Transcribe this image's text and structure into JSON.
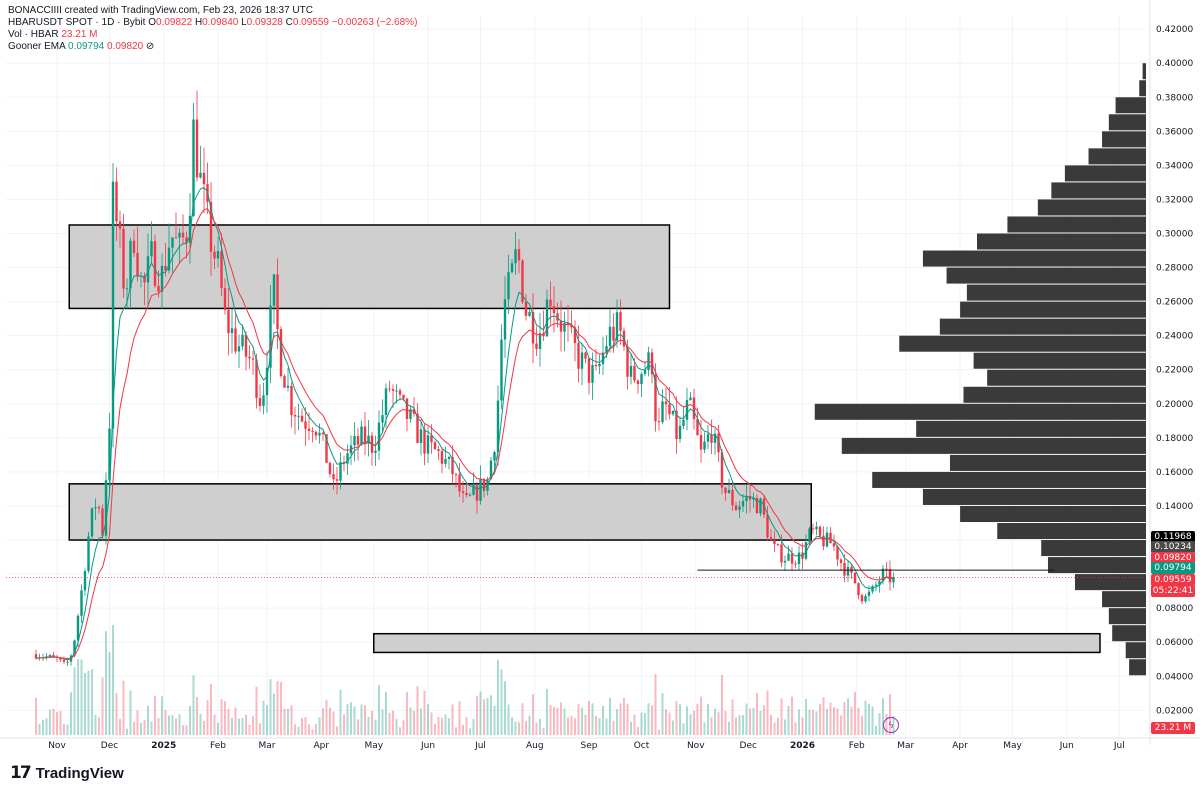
{
  "header": {
    "credit": "BONACCIIII created with TradingView.com, Feb 23, 2026 18:37 UTC",
    "symbol": "HBARUSDT SPOT · 1D · Bybit",
    "ohlc": {
      "o_label": "O",
      "o": "0.09822",
      "h_label": "H",
      "h": "0.09840",
      "l_label": "L",
      "l": "0.09328",
      "c_label": "C",
      "c": "0.09559",
      "change": "−0.00263 (−2.68%)"
    },
    "volume": {
      "label": "Vol · HBAR",
      "value": "23.21 M"
    },
    "ema": {
      "label": "Gooner EMA",
      "v1": "0.09794",
      "v2": "0.09820",
      "icon": "hidden-eye-icon"
    }
  },
  "price_tags": {
    "t1": {
      "value": "0.11968",
      "color": "#000000"
    },
    "t2": {
      "value": "0.10234",
      "color": "#4a4a4a"
    },
    "t3": {
      "value": "0.09820",
      "color": "#f23645"
    },
    "t4": {
      "value": "0.09794",
      "color": "#089981"
    },
    "t5": {
      "value": "0.09559",
      "color": "#f23645"
    },
    "countdown": "05:22:41",
    "volume_tag": "23.21 M"
  },
  "branding": {
    "name": "TradingView"
  },
  "chart_data": {
    "type": "candlestick",
    "y_axis": {
      "range": [
        0.0,
        0.42
      ],
      "ticks": [
        "0.42000",
        "0.40000",
        "0.38000",
        "0.36000",
        "0.34000",
        "0.32000",
        "0.30000",
        "0.28000",
        "0.26000",
        "0.24000",
        "0.22000",
        "0.20000",
        "0.18000",
        "0.16000",
        "0.14000",
        "0.12000",
        "0.10000",
        "0.08000",
        "0.06000",
        "0.04000",
        "0.02000"
      ]
    },
    "x_axis": {
      "ticks": [
        "Nov",
        "Dec",
        "2025",
        "Feb",
        "Mar",
        "Apr",
        "May",
        "Jun",
        "Jul",
        "Aug",
        "Sep",
        "Oct",
        "Nov",
        "Dec",
        "2026",
        "Feb",
        "Mar",
        "Apr",
        "May",
        "Jun",
        "Jul"
      ],
      "bold_ticks": [
        "2025",
        "2026"
      ]
    },
    "colors": {
      "up": "#089981",
      "down": "#f23645",
      "ema_fast": "#089981",
      "ema_slow": "#f23645",
      "zone_fill": "#cccccc",
      "profile_bar": "#3a3a3a"
    },
    "price_path": [
      [
        "2024-10-20",
        0.053
      ],
      [
        "2024-11-01",
        0.05
      ],
      [
        "2024-11-06",
        0.046
      ],
      [
        "2024-11-10",
        0.055
      ],
      [
        "2024-11-15",
        0.09
      ],
      [
        "2024-11-20",
        0.13
      ],
      [
        "2024-11-24",
        0.145
      ],
      [
        "2024-11-27",
        0.125
      ],
      [
        "2024-12-01",
        0.19
      ],
      [
        "2024-12-03",
        0.32
      ],
      [
        "2024-12-06",
        0.3
      ],
      [
        "2024-12-10",
        0.265
      ],
      [
        "2024-12-15",
        0.3
      ],
      [
        "2024-12-20",
        0.265
      ],
      [
        "2024-12-25",
        0.285
      ],
      [
        "2024-12-31",
        0.275
      ],
      [
        "2025-01-05",
        0.3
      ],
      [
        "2025-01-10",
        0.29
      ],
      [
        "2025-01-15",
        0.305
      ],
      [
        "2025-01-18",
        0.36
      ],
      [
        "2025-01-22",
        0.33
      ],
      [
        "2025-01-27",
        0.3
      ],
      [
        "2025-02-01",
        0.28
      ],
      [
        "2025-02-05",
        0.25
      ],
      [
        "2025-02-12",
        0.235
      ],
      [
        "2025-02-20",
        0.225
      ],
      [
        "2025-02-26",
        0.2
      ],
      [
        "2025-03-02",
        0.24
      ],
      [
        "2025-03-05",
        0.265
      ],
      [
        "2025-03-08",
        0.23
      ],
      [
        "2025-03-15",
        0.2
      ],
      [
        "2025-03-22",
        0.19
      ],
      [
        "2025-03-28",
        0.19
      ],
      [
        "2025-04-05",
        0.165
      ],
      [
        "2025-04-08",
        0.15
      ],
      [
        "2025-04-15",
        0.17
      ],
      [
        "2025-04-25",
        0.18
      ],
      [
        "2025-05-01",
        0.175
      ],
      [
        "2025-05-10",
        0.21
      ],
      [
        "2025-05-15",
        0.2
      ],
      [
        "2025-05-22",
        0.19
      ],
      [
        "2025-05-31",
        0.175
      ],
      [
        "2025-06-08",
        0.17
      ],
      [
        "2025-06-15",
        0.16
      ],
      [
        "2025-06-22",
        0.14
      ],
      [
        "2025-06-30",
        0.15
      ],
      [
        "2025-07-05",
        0.155
      ],
      [
        "2025-07-10",
        0.185
      ],
      [
        "2025-07-14",
        0.255
      ],
      [
        "2025-07-18",
        0.27
      ],
      [
        "2025-07-22",
        0.29
      ],
      [
        "2025-07-27",
        0.255
      ],
      [
        "2025-08-03",
        0.24
      ],
      [
        "2025-08-10",
        0.265
      ],
      [
        "2025-08-15",
        0.25
      ],
      [
        "2025-08-22",
        0.235
      ],
      [
        "2025-08-30",
        0.22
      ],
      [
        "2025-09-05",
        0.215
      ],
      [
        "2025-09-12",
        0.24
      ],
      [
        "2025-09-18",
        0.245
      ],
      [
        "2025-09-25",
        0.215
      ],
      [
        "2025-10-01",
        0.22
      ],
      [
        "2025-10-07",
        0.225
      ],
      [
        "2025-10-10",
        0.18
      ],
      [
        "2025-10-14",
        0.2
      ],
      [
        "2025-10-22",
        0.18
      ],
      [
        "2025-10-28",
        0.2
      ],
      [
        "2025-11-04",
        0.17
      ],
      [
        "2025-11-10",
        0.185
      ],
      [
        "2025-11-17",
        0.15
      ],
      [
        "2025-11-24",
        0.14
      ],
      [
        "2025-12-01",
        0.145
      ],
      [
        "2025-12-08",
        0.14
      ],
      [
        "2025-12-15",
        0.115
      ],
      [
        "2025-12-22",
        0.11
      ],
      [
        "2025-12-31",
        0.11
      ],
      [
        "2026-01-06",
        0.125
      ],
      [
        "2026-01-12",
        0.12
      ],
      [
        "2026-01-18",
        0.118
      ],
      [
        "2026-01-24",
        0.105
      ],
      [
        "2026-01-31",
        0.095
      ],
      [
        "2026-02-05",
        0.085
      ],
      [
        "2026-02-10",
        0.09
      ],
      [
        "2026-02-16",
        0.1
      ],
      [
        "2026-02-23",
        0.0956
      ]
    ],
    "zones": [
      {
        "from": "2024-11-08",
        "to": "2025-10-17",
        "top": 0.305,
        "bottom": 0.256
      },
      {
        "from": "2024-11-08",
        "to": "2026-01-06",
        "top": 0.153,
        "bottom": 0.12
      },
      {
        "from": "2025-05-01",
        "to": "2026-06-20",
        "top": 0.065,
        "bottom": 0.054
      }
    ],
    "horizontal_line": {
      "from": "2025-11-02",
      "to": "2026-05-25",
      "price": 0.1023
    },
    "volume_profile": [
      [
        0.395,
        0.01
      ],
      [
        0.385,
        0.02
      ],
      [
        0.375,
        0.09
      ],
      [
        0.365,
        0.11
      ],
      [
        0.355,
        0.13
      ],
      [
        0.345,
        0.17
      ],
      [
        0.335,
        0.24
      ],
      [
        0.325,
        0.28
      ],
      [
        0.315,
        0.32
      ],
      [
        0.305,
        0.41
      ],
      [
        0.295,
        0.5
      ],
      [
        0.285,
        0.66
      ],
      [
        0.275,
        0.59
      ],
      [
        0.265,
        0.53
      ],
      [
        0.255,
        0.55
      ],
      [
        0.245,
        0.61
      ],
      [
        0.235,
        0.73
      ],
      [
        0.225,
        0.51
      ],
      [
        0.215,
        0.47
      ],
      [
        0.205,
        0.54
      ],
      [
        0.195,
        0.98
      ],
      [
        0.185,
        0.68
      ],
      [
        0.175,
        0.9
      ],
      [
        0.165,
        0.58
      ],
      [
        0.155,
        0.81
      ],
      [
        0.145,
        0.66
      ],
      [
        0.135,
        0.55
      ],
      [
        0.125,
        0.44
      ],
      [
        0.115,
        0.31
      ],
      [
        0.105,
        0.29
      ],
      [
        0.095,
        0.21
      ],
      [
        0.085,
        0.13
      ],
      [
        0.075,
        0.11
      ],
      [
        0.065,
        0.1
      ],
      [
        0.055,
        0.06
      ],
      [
        0.045,
        0.05
      ]
    ]
  }
}
